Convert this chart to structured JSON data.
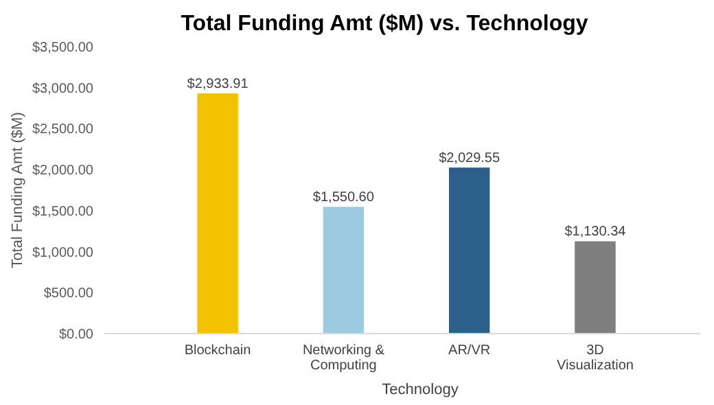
{
  "chart_data": {
    "type": "bar",
    "title": "Total Funding Amt ($M) vs. Technology",
    "xlabel": "Technology",
    "ylabel": "Total Funding Amt ($M)",
    "categories": [
      "Blockchain",
      "Networking & Computing",
      "AR/VR",
      "3D Visualization"
    ],
    "values": [
      2933.91,
      1550.6,
      2029.55,
      1130.34
    ],
    "colors": [
      "#f2c200",
      "#9ecae1",
      "#2c5f8a",
      "#7f7f7f"
    ],
    "value_labels": [
      "$2,933.91",
      "$1,550.60",
      "$2,029.55",
      "$1,130.34"
    ],
    "ylim": [
      0,
      3500
    ],
    "yticks": [
      {
        "value": 0,
        "label": "$0.00"
      },
      {
        "value": 500,
        "label": "$500.00"
      },
      {
        "value": 1000,
        "label": "$1,000.00"
      },
      {
        "value": 1500,
        "label": "$1,500.00"
      },
      {
        "value": 2000,
        "label": "$2,000.00"
      },
      {
        "value": 2500,
        "label": "$2,500.00"
      },
      {
        "value": 3000,
        "label": "$3,000.00"
      },
      {
        "value": 3500,
        "label": "$3,500.00"
      }
    ],
    "grid": false
  }
}
